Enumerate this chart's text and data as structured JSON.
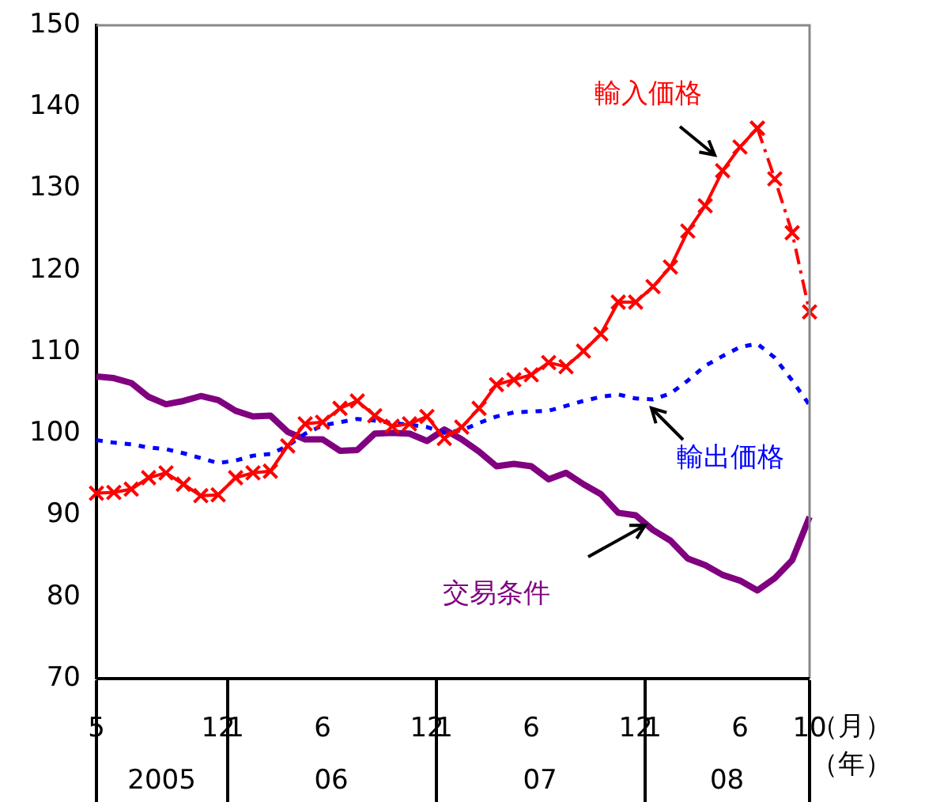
{
  "chart_data": {
    "type": "line",
    "categories": [
      "5",
      null,
      null,
      null,
      null,
      null,
      null,
      "12",
      "1",
      null,
      null,
      null,
      null,
      "6",
      null,
      null,
      null,
      null,
      null,
      "12",
      "1",
      null,
      null,
      null,
      null,
      "6",
      null,
      null,
      null,
      null,
      null,
      "12",
      "1",
      null,
      null,
      null,
      null,
      "6",
      null,
      null,
      null,
      "10"
    ],
    "xlabel": "（月）",
    "annotations": [
      "2005",
      "06",
      "07",
      "08",
      "（年）"
    ],
    "ylim": [
      70,
      150
    ],
    "yticks": [
      70,
      80,
      90,
      100,
      110,
      120,
      130,
      140,
      150
    ],
    "grid": false,
    "legend": false,
    "series": [
      {
        "name": "輸入価格",
        "color": "#ff0000",
        "marker": "cross",
        "line_style": "solid",
        "values": [
          92.7,
          92.8,
          93.2,
          94.6,
          95.2,
          93.8,
          92.4,
          92.5,
          94.6,
          95.2,
          95.4,
          98.5,
          101.2,
          101.4,
          103.1,
          104,
          102.2,
          100.9,
          101.2,
          102.1,
          99.4,
          100.8,
          103.1,
          106,
          106.6,
          107.2,
          108.7,
          108.2,
          110.1,
          112.2,
          116.1,
          116.1,
          118,
          120.4,
          124.8,
          127.9,
          132.2,
          135.1,
          137.4,
          null,
          null,
          null
        ]
      },
      {
        "color": "#ff0000",
        "marker": "cross",
        "line_style": "dashed",
        "values": [
          null,
          null,
          null,
          null,
          null,
          null,
          null,
          null,
          null,
          null,
          null,
          null,
          null,
          null,
          null,
          null,
          null,
          null,
          null,
          null,
          null,
          null,
          null,
          null,
          null,
          null,
          null,
          null,
          null,
          null,
          null,
          null,
          null,
          null,
          null,
          null,
          null,
          null,
          137.4,
          131.2,
          124.6,
          114.9
        ]
      },
      {
        "name": "輸出価格",
        "color": "#0000ff",
        "marker": "none",
        "line_style": "dotted",
        "values": [
          99.2,
          98.9,
          98.7,
          98.3,
          98.1,
          97.6,
          97,
          96.4,
          96.7,
          97.3,
          97.5,
          98.5,
          100,
          101,
          101.4,
          101.8,
          101.6,
          101.3,
          101.1,
          100.8,
          100.1,
          100.4,
          101.3,
          102.1,
          102.6,
          102.7,
          102.8,
          103.4,
          104,
          104.5,
          104.8,
          104.3,
          104.2,
          104.9,
          106.5,
          108.3,
          109.5,
          110.6,
          111,
          109.3,
          106.5,
          103.5
        ]
      },
      {
        "name": "交易条件",
        "color": "#800080",
        "marker": "none",
        "line_style": "solid",
        "values": [
          107,
          106.8,
          106.2,
          104.5,
          103.6,
          104,
          104.6,
          104.1,
          102.8,
          102.1,
          102.2,
          100.2,
          99.3,
          99.3,
          97.9,
          98,
          100,
          100.1,
          100,
          99.1,
          100.5,
          99.3,
          97.8,
          96,
          96.3,
          96,
          94.4,
          95.2,
          93.8,
          92.6,
          90.3,
          90,
          88.2,
          86.9,
          84.7,
          83.9,
          82.7,
          82,
          80.8,
          82.3,
          84.5,
          89.8
        ]
      }
    ]
  }
}
